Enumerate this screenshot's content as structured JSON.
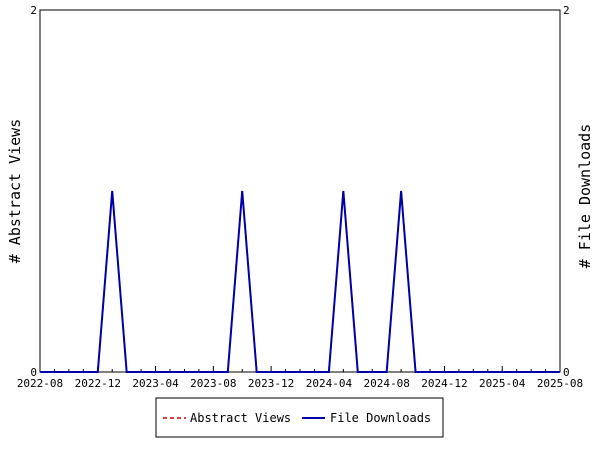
{
  "chart_data": {
    "type": "line",
    "title": "",
    "xlabel": "",
    "ylabel_left": "# Abstract Views",
    "ylabel_right": "# File Downloads",
    "x_ticks": [
      "2022-08",
      "2022-12",
      "2023-04",
      "2023-08",
      "2023-12",
      "2024-04",
      "2024-08",
      "2024-12",
      "2025-04",
      "2025-08"
    ],
    "months": [
      "2022-08",
      "2022-09",
      "2022-10",
      "2022-11",
      "2022-12",
      "2023-01",
      "2023-02",
      "2023-03",
      "2023-04",
      "2023-05",
      "2023-06",
      "2023-07",
      "2023-08",
      "2023-09",
      "2023-10",
      "2023-11",
      "2023-12",
      "2024-01",
      "2024-02",
      "2024-03",
      "2024-04",
      "2024-05",
      "2024-06",
      "2024-07",
      "2024-08",
      "2024-09",
      "2024-10",
      "2024-11",
      "2024-12",
      "2025-01",
      "2025-02",
      "2025-03",
      "2025-04",
      "2025-05",
      "2025-06",
      "2025-07",
      "2025-08"
    ],
    "ylim_left": [
      0,
      2
    ],
    "ylim_right": [
      0,
      2
    ],
    "y_ticks_left": [
      "0",
      "2"
    ],
    "y_ticks_right": [
      "0",
      "2"
    ],
    "series": [
      {
        "name": "Abstract Views",
        "color": "#cc0000",
        "dashed": true,
        "values": [
          0,
          0,
          0,
          0,
          0,
          1,
          0,
          0,
          0,
          0,
          0,
          0,
          0,
          0,
          1,
          0,
          0,
          0,
          0,
          0,
          0,
          1,
          0,
          0,
          0,
          1,
          0,
          0,
          0,
          0,
          0,
          0,
          0,
          0,
          0,
          0,
          0
        ]
      },
      {
        "name": "File Downloads",
        "color": "#0000aa",
        "dashed": false,
        "values": [
          0,
          0,
          0,
          0,
          0,
          1,
          0,
          0,
          0,
          0,
          0,
          0,
          0,
          0,
          1,
          0,
          0,
          0,
          0,
          0,
          0,
          1,
          0,
          0,
          0,
          1,
          0,
          0,
          0,
          0,
          0,
          0,
          0,
          0,
          0,
          0,
          0
        ]
      }
    ],
    "grid": false,
    "legend_position": "bottom-center"
  }
}
